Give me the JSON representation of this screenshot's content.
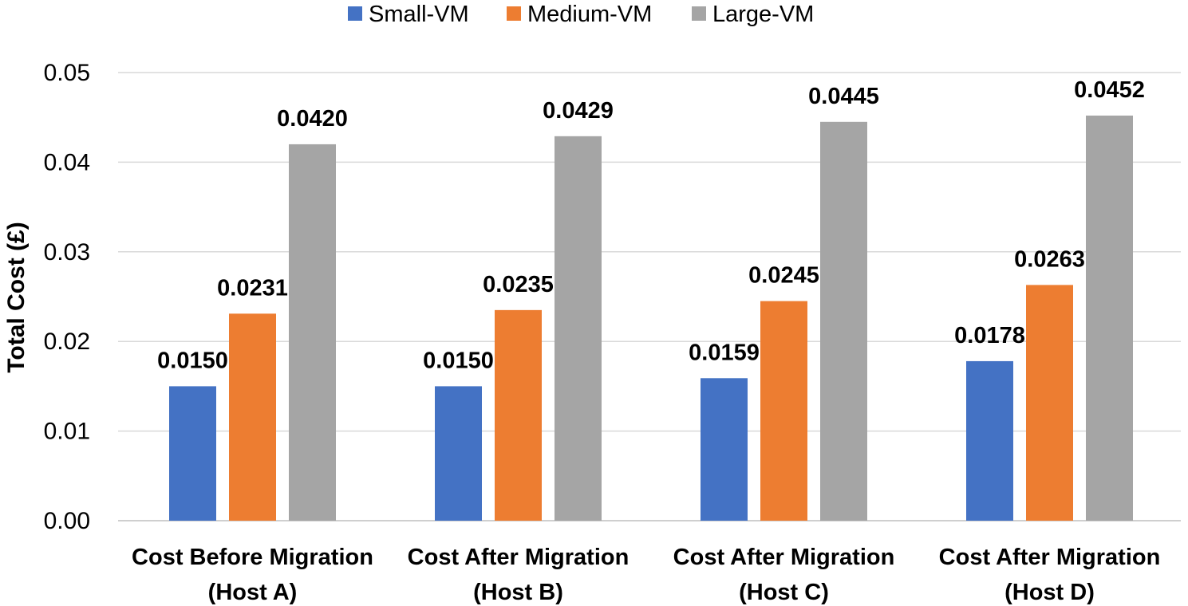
{
  "chart_data": {
    "type": "bar",
    "title": "",
    "xlabel": "",
    "ylabel": "Total Cost (£)",
    "ylim": [
      0,
      0.05
    ],
    "yticks": [
      "0.00",
      "0.01",
      "0.02",
      "0.03",
      "0.04",
      "0.05"
    ],
    "grid": true,
    "legend_position": "top-center",
    "categories": [
      [
        "Cost Before Migration",
        "(Host A)"
      ],
      [
        "Cost After Migration",
        "(Host B)"
      ],
      [
        "Cost After Migration",
        "(Host C)"
      ],
      [
        "Cost After Migration",
        "(Host D)"
      ]
    ],
    "series": [
      {
        "name": "Small-VM",
        "color": "#4472C4",
        "values": [
          0.015,
          0.015,
          0.0159,
          0.0178
        ],
        "labels": [
          "0.0150",
          "0.0150",
          "0.0159",
          "0.0178"
        ]
      },
      {
        "name": "Medium-VM",
        "color": "#ED7D31",
        "values": [
          0.0231,
          0.0235,
          0.0245,
          0.0263
        ],
        "labels": [
          "0.0231",
          "0.0235",
          "0.0245",
          "0.0263"
        ]
      },
      {
        "name": "Large-VM",
        "color": "#A5A5A5",
        "values": [
          0.042,
          0.0429,
          0.0445,
          0.0452
        ],
        "labels": [
          "0.0420",
          "0.0429",
          "0.0445",
          "0.0452"
        ]
      }
    ]
  }
}
